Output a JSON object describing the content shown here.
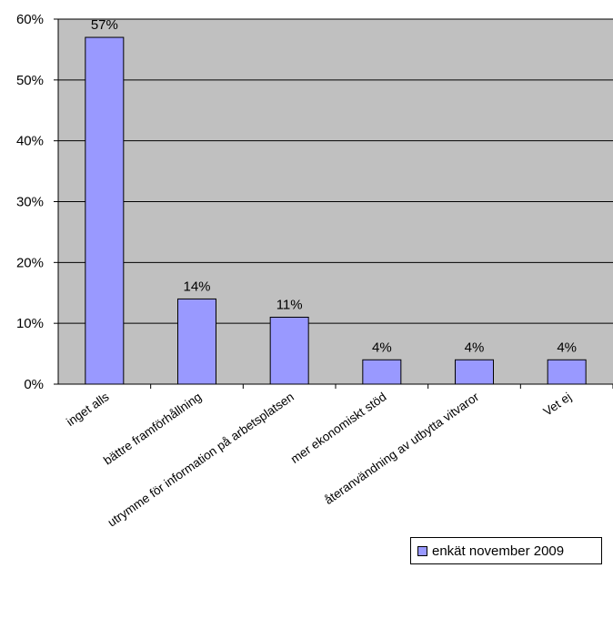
{
  "chart_data": {
    "type": "bar",
    "categories": [
      "inget alls",
      "bättre framförhållning",
      "utrymme för information på arbetsplatsen",
      "mer ekonomiskt stöd",
      "återanvändning av utbytta vitvaror",
      "Vet ej"
    ],
    "series": [
      {
        "name": "enkät november 2009",
        "values": [
          57,
          14,
          11,
          4,
          4,
          4
        ],
        "color": "#9999ff"
      }
    ],
    "data_labels": [
      "57%",
      "14%",
      "11%",
      "4%",
      "4%",
      "4%"
    ],
    "y_ticks": [
      "0%",
      "10%",
      "20%",
      "30%",
      "40%",
      "50%",
      "60%"
    ],
    "ylim": [
      0,
      60
    ],
    "plot_background": "#c0c0c0",
    "grid": true,
    "legend_position": "bottom-right",
    "title": "",
    "xlabel": "",
    "ylabel": ""
  }
}
